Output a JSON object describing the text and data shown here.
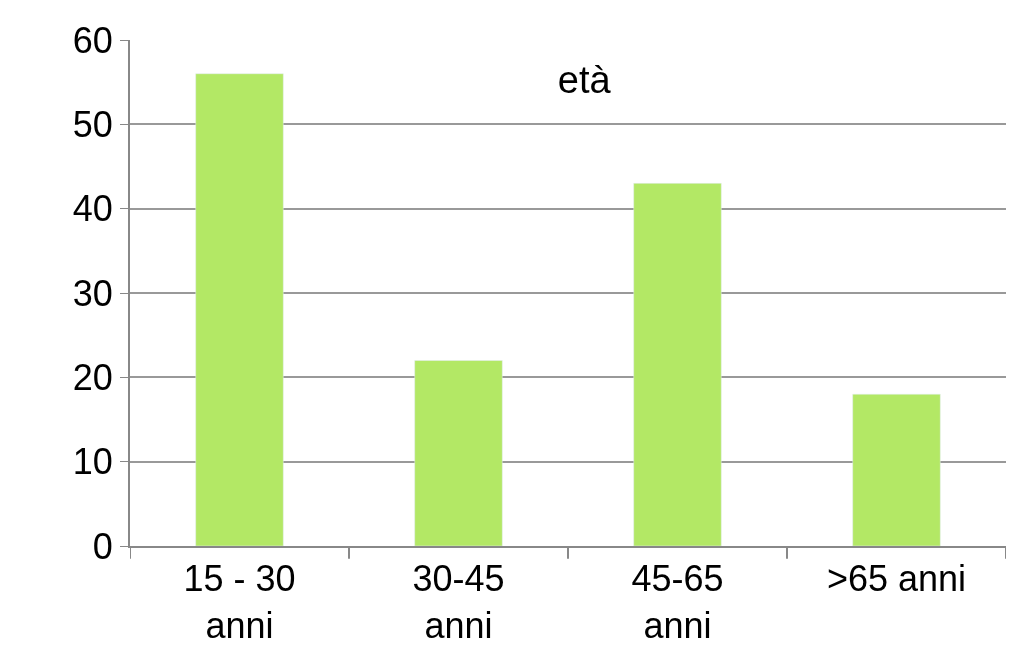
{
  "chart_data": {
    "type": "bar",
    "title": "età",
    "categories": [
      "15 - 30 anni",
      "30-45 anni",
      "45-65 anni",
      ">65 anni"
    ],
    "values": [
      56,
      22,
      43,
      18
    ],
    "color": "#b3e865",
    "ylim": [
      0,
      60
    ],
    "yticks": [
      0,
      10,
      20,
      30,
      40,
      50,
      60
    ],
    "grid": "y",
    "legend": false
  }
}
